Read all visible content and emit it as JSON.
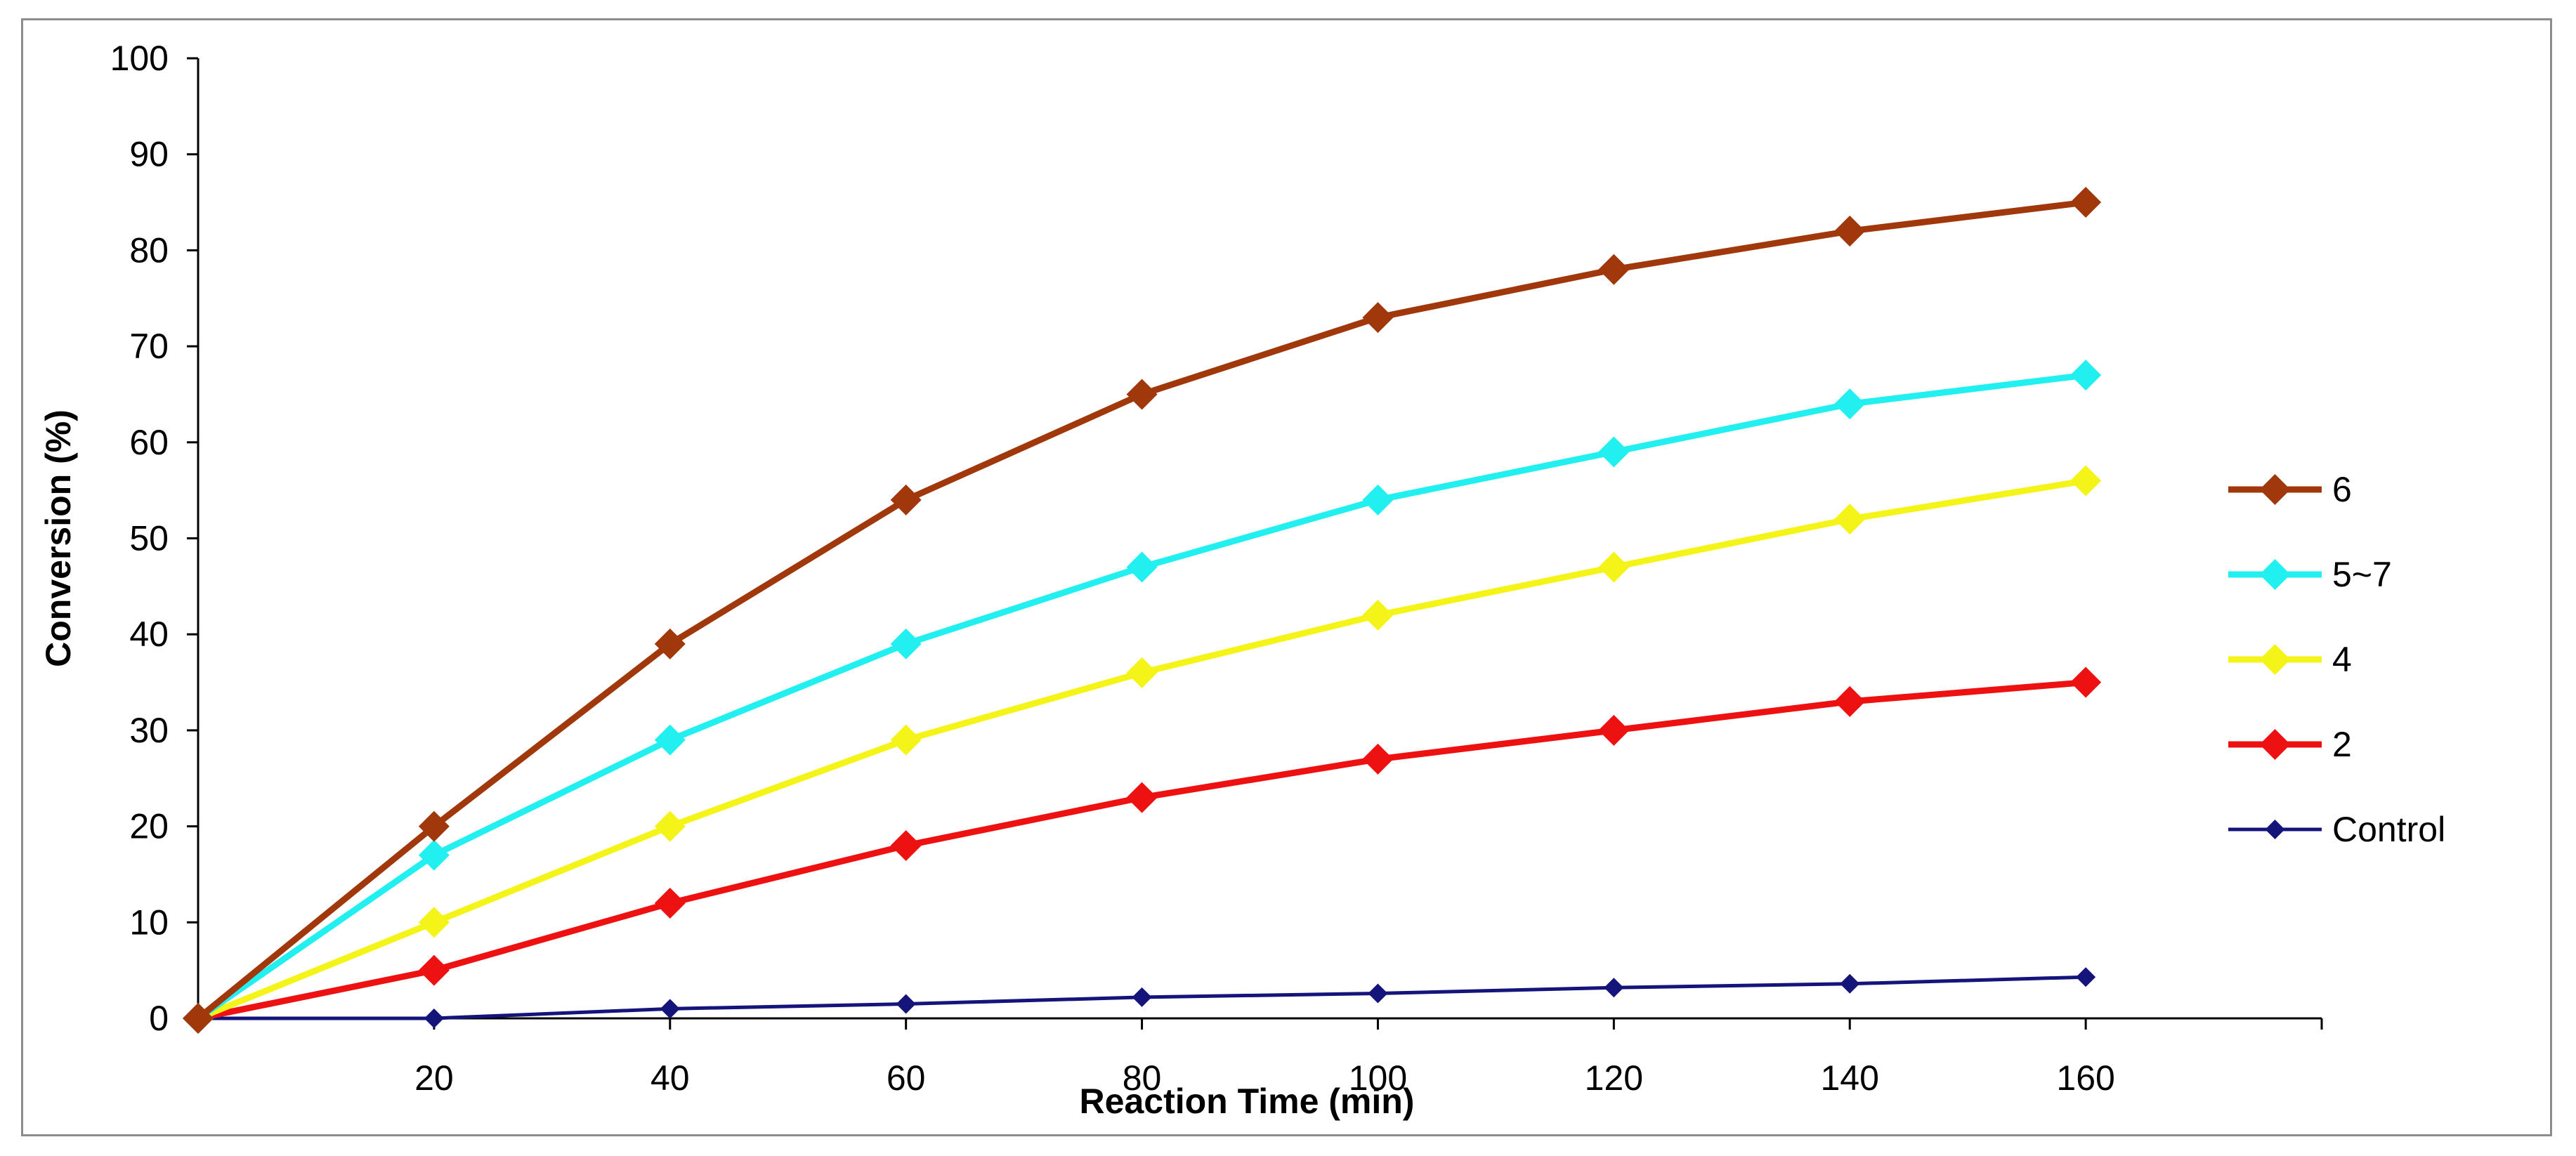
{
  "chart_data": {
    "type": "line",
    "title": "",
    "xlabel": "Reaction Time (min)",
    "ylabel": "Conversion (%)",
    "x": [
      0,
      20,
      40,
      60,
      80,
      100,
      120,
      140,
      160
    ],
    "xlim": [
      0,
      180
    ],
    "ylim": [
      0,
      100
    ],
    "x_ticks": [
      20,
      40,
      60,
      80,
      100,
      120,
      140,
      160
    ],
    "x_tick_labels": [
      "20",
      "40",
      "60",
      "80",
      "100",
      "120",
      "140",
      "160"
    ],
    "y_ticks": [
      0,
      10,
      20,
      30,
      40,
      50,
      60,
      70,
      80,
      90,
      100
    ],
    "y_tick_labels": [
      "0",
      "10",
      "20",
      "30",
      "40",
      "50",
      "60",
      "70",
      "80",
      "90",
      "100"
    ],
    "grid": false,
    "legend_position": "right",
    "series": [
      {
        "name": "6",
        "color": "#a0380b",
        "marker": "diamond",
        "values": [
          0,
          20,
          39,
          54,
          65,
          73,
          78,
          82,
          85
        ]
      },
      {
        "name": "5~7",
        "color": "#22f0f0",
        "marker": "diamond",
        "values": [
          0,
          17,
          29,
          39,
          47,
          54,
          59,
          64,
          67
        ]
      },
      {
        "name": "4",
        "color": "#f4f418",
        "marker": "diamond",
        "values": [
          0,
          10,
          20,
          29,
          36,
          42,
          47,
          52,
          56
        ]
      },
      {
        "name": "2",
        "color": "#ee1111",
        "marker": "diamond",
        "values": [
          0,
          5,
          12,
          18,
          23,
          27,
          30,
          33,
          35
        ]
      },
      {
        "name": "Control",
        "color": "#14147a",
        "marker": "diamond-small",
        "values": [
          0,
          0,
          1,
          1.5,
          2.2,
          2.6,
          3.2,
          3.6,
          4.3
        ]
      }
    ]
  }
}
